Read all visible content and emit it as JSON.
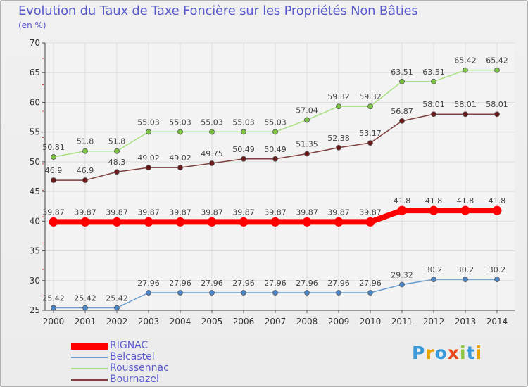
{
  "title": "Evolution du Taux de Taxe Foncière sur les Propriétés Non Bâties",
  "unit_label": "(en %)",
  "brand": [
    "P",
    "r",
    "o",
    "x",
    "i",
    "t",
    "i"
  ],
  "brand_colors": [
    "#3a9ad9",
    "#e8a300",
    "#3a9ad9",
    "#e84a1a",
    "#8cc63f",
    "#3a9ad9",
    "#e8a300"
  ],
  "chart_data": {
    "type": "line",
    "title": "Evolution du Taux de Taxe Foncière sur les Propriétés Non Bâties",
    "ylabel": "(en %)",
    "x": [
      2000,
      2001,
      2002,
      2003,
      2004,
      2005,
      2006,
      2007,
      2008,
      2009,
      2010,
      2011,
      2012,
      2013,
      2014
    ],
    "ylim": [
      25,
      70
    ],
    "yticks": [
      25,
      30,
      35,
      40,
      45,
      50,
      55,
      60,
      65,
      70
    ],
    "grid": true,
    "legend_position": "bottom-left",
    "series": [
      {
        "name": "RIGNAC",
        "color": "#ff0000",
        "marker": "#ff0000",
        "width": 8,
        "values": [
          39.87,
          39.87,
          39.87,
          39.87,
          39.87,
          39.87,
          39.87,
          39.87,
          39.87,
          39.87,
          39.87,
          41.8,
          41.8,
          41.8,
          41.8
        ]
      },
      {
        "name": "Belcastel",
        "color": "#6a9ed0",
        "marker": "#4a86c8",
        "width": 1.5,
        "values": [
          25.42,
          25.42,
          25.42,
          27.96,
          27.96,
          27.96,
          27.96,
          27.96,
          27.96,
          27.96,
          27.96,
          29.32,
          30.2,
          30.2,
          30.2
        ]
      },
      {
        "name": "Roussennac",
        "color": "#a8e080",
        "marker": "#7cc444",
        "width": 1.5,
        "values": [
          50.81,
          51.8,
          51.8,
          55.03,
          55.03,
          55.03,
          55.03,
          55.03,
          57.04,
          59.32,
          59.32,
          63.51,
          63.51,
          65.42,
          65.42
        ]
      },
      {
        "name": "Bournazel",
        "color": "#804040",
        "marker": "#6a1a1a",
        "width": 1.5,
        "values": [
          46.9,
          46.9,
          48.3,
          49.02,
          49.02,
          49.75,
          50.49,
          50.49,
          51.35,
          52.38,
          53.17,
          56.87,
          58.01,
          58.01,
          58.01
        ]
      }
    ]
  }
}
